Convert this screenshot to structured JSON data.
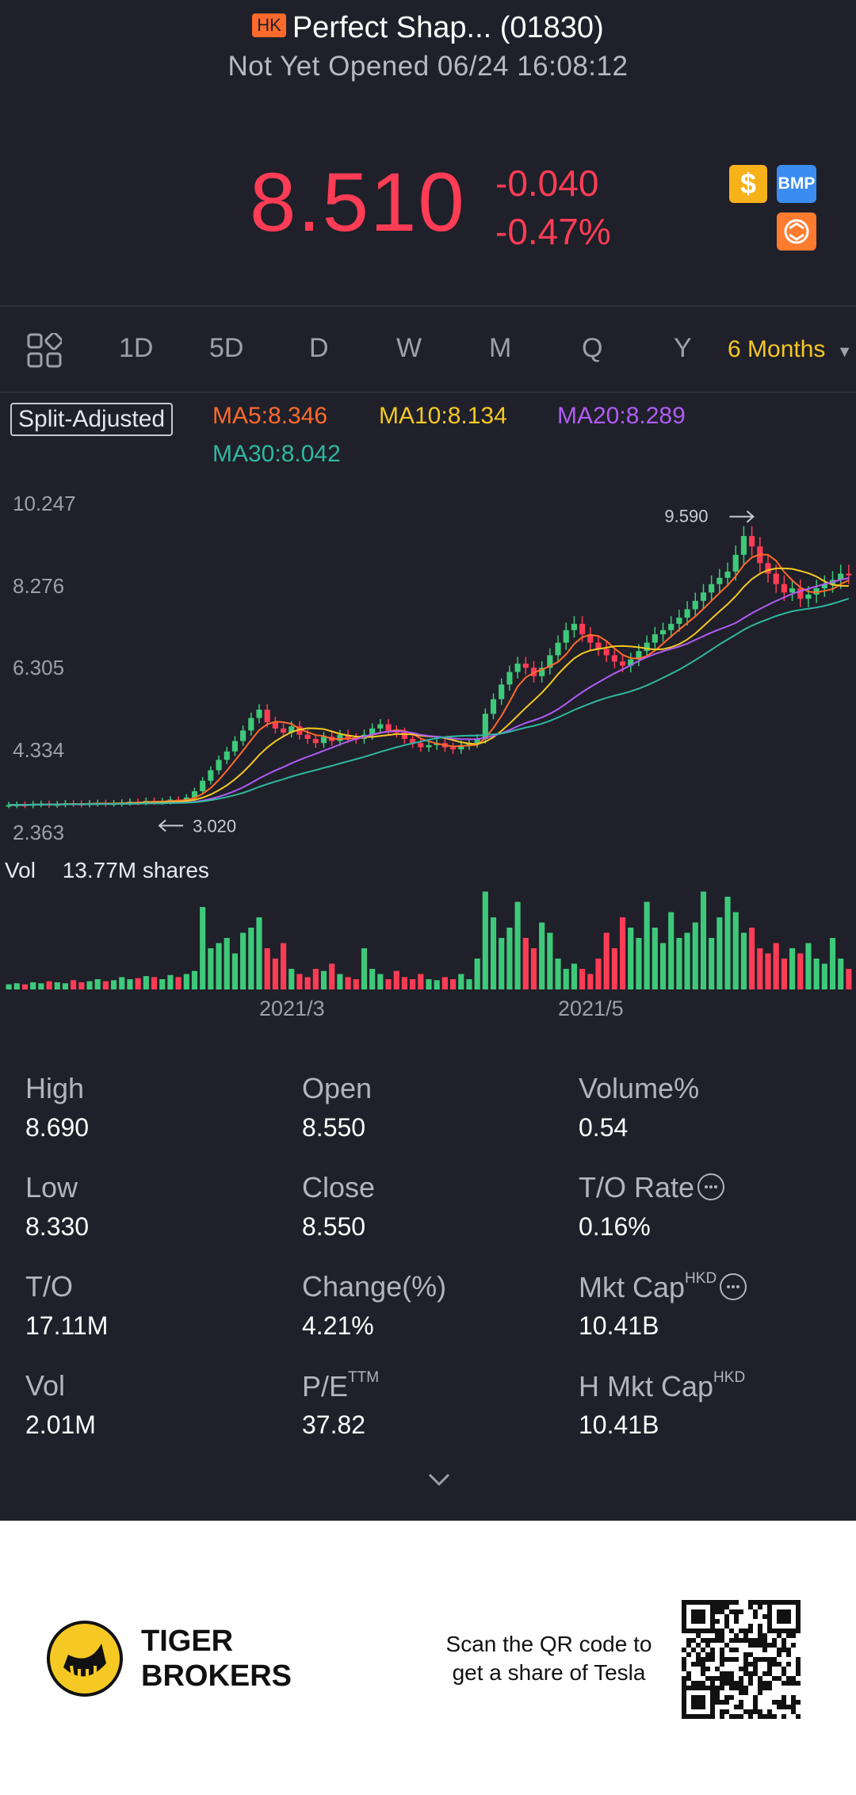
{
  "header": {
    "market_badge": "HK",
    "title": "Perfect Shap... (01830)",
    "status": "Not Yet Opened 06/24 16:08:12",
    "price": "8.510",
    "change": "-0.040",
    "change_pct": "-0.47%",
    "badges": {
      "dollar": "$",
      "bmp": "BMP"
    }
  },
  "tabs": [
    "1D",
    "5D",
    "D",
    "W",
    "M",
    "Q",
    "Y"
  ],
  "active_period": "6 Months",
  "indicators": {
    "split": "Split-Adjusted",
    "ma5": "MA5:8.346",
    "ma10": "MA10:8.134",
    "ma20": "MA20:8.289",
    "ma30": "MA30:8.042"
  },
  "colors": {
    "up": "#3ec97a",
    "down": "#ff3c55",
    "ma5": "#ff6a2c",
    "ma10": "#f5c823",
    "ma20": "#b05cf5",
    "ma30": "#2fb8a0"
  },
  "chart_data": {
    "type": "candlestick",
    "y_ticks": [
      "10.247",
      "8.276",
      "6.305",
      "4.334",
      "2.363"
    ],
    "high_marker": "9.590",
    "low_marker": "3.020",
    "volume_label": "Vol",
    "volume_value": "13.77M shares",
    "x_ticks": [
      "2021/3",
      "2021/5"
    ],
    "closes": [
      3.02,
      3.03,
      3.02,
      3.04,
      3.05,
      3.03,
      3.04,
      3.06,
      3.05,
      3.04,
      3.06,
      3.07,
      3.05,
      3.06,
      3.08,
      3.1,
      3.09,
      3.12,
      3.1,
      3.11,
      3.15,
      3.14,
      3.2,
      3.35,
      3.6,
      3.85,
      4.1,
      4.3,
      4.55,
      4.8,
      5.1,
      5.3,
      5.0,
      4.85,
      4.75,
      4.9,
      4.7,
      4.6,
      4.5,
      4.65,
      4.55,
      4.7,
      4.62,
      4.6,
      4.7,
      4.85,
      4.95,
      4.8,
      4.75,
      4.6,
      4.5,
      4.4,
      4.45,
      4.5,
      4.4,
      4.35,
      4.45,
      4.5,
      4.6,
      5.2,
      5.55,
      5.9,
      6.2,
      6.4,
      6.3,
      6.1,
      6.3,
      6.6,
      6.9,
      7.2,
      7.35,
      7.1,
      6.9,
      6.75,
      6.6,
      6.45,
      6.35,
      6.5,
      6.7,
      6.9,
      7.1,
      7.2,
      7.35,
      7.5,
      7.7,
      7.9,
      8.1,
      8.3,
      8.45,
      8.6,
      9.0,
      9.45,
      9.2,
      8.8,
      8.55,
      8.3,
      8.1,
      8.2,
      7.95,
      8.05,
      8.2,
      8.3,
      8.4,
      8.55,
      8.51
    ],
    "volumes_rel": [
      0.05,
      0.06,
      0.05,
      0.07,
      0.06,
      0.08,
      0.07,
      0.06,
      0.09,
      0.07,
      0.08,
      0.1,
      0.08,
      0.09,
      0.12,
      0.1,
      0.11,
      0.13,
      0.12,
      0.1,
      0.14,
      0.12,
      0.15,
      0.18,
      0.8,
      0.4,
      0.45,
      0.5,
      0.35,
      0.55,
      0.6,
      0.7,
      0.4,
      0.3,
      0.45,
      0.2,
      0.15,
      0.12,
      0.2,
      0.18,
      0.25,
      0.15,
      0.12,
      0.1,
      0.4,
      0.2,
      0.15,
      0.1,
      0.18,
      0.12,
      0.1,
      0.15,
      0.1,
      0.09,
      0.12,
      0.1,
      0.15,
      0.1,
      0.3,
      0.95,
      0.7,
      0.5,
      0.6,
      0.85,
      0.5,
      0.4,
      0.65,
      0.55,
      0.3,
      0.2,
      0.25,
      0.2,
      0.15,
      0.3,
      0.55,
      0.4,
      0.7,
      0.6,
      0.5,
      0.85,
      0.6,
      0.45,
      0.75,
      0.5,
      0.55,
      0.65,
      0.95,
      0.5,
      0.7,
      0.9,
      0.75,
      0.55,
      0.6,
      0.4,
      0.35,
      0.45,
      0.3,
      0.4,
      0.35,
      0.45,
      0.3,
      0.25,
      0.5,
      0.3,
      0.2
    ],
    "ylim": [
      2.363,
      10.247
    ]
  },
  "stats": [
    {
      "label": "High",
      "value": "8.690"
    },
    {
      "label": "Open",
      "value": "8.550"
    },
    {
      "label": "Volume%",
      "value": "0.54"
    },
    {
      "label": "Low",
      "value": "8.330"
    },
    {
      "label": "Close",
      "value": "8.550"
    },
    {
      "label": "T/O Rate",
      "value": "0.16%"
    },
    {
      "label": "T/O",
      "value": "17.11M"
    },
    {
      "label": "Change(%)",
      "value": "4.21%"
    },
    {
      "label": "Mkt Cap",
      "sup": "HKD",
      "value": "10.41B"
    },
    {
      "label": "Vol",
      "value": "2.01M"
    },
    {
      "label": "P/E",
      "sup": "TTM",
      "value": "37.82"
    },
    {
      "label": "H Mkt Cap",
      "sup": "HKD",
      "value": "10.41B"
    }
  ],
  "footer": {
    "brand_line1": "TIGER",
    "brand_line2": "BROKERS",
    "qr_text_1": "Scan the QR code to",
    "qr_text_2": "get a share of Tesla"
  }
}
